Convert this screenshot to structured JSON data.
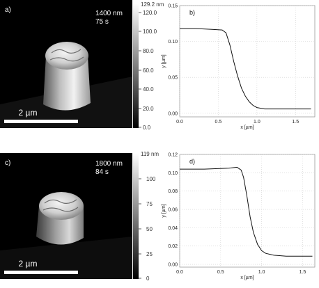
{
  "panels": {
    "a": {
      "label": "a)",
      "info_line1": "1400 nm",
      "info_line2": "75 s",
      "scalebar_label": "2 µm",
      "colorbar_max_label": "129.2 nm",
      "colorbar_ticks": [
        "120.0",
        "100.0",
        "80.0",
        "60.0",
        "40.0",
        "20.0",
        "0.0"
      ]
    },
    "c": {
      "label": "c)",
      "info_line1": "1800 nm",
      "info_line2": "84 s",
      "scalebar_label": "2 µm",
      "colorbar_max_label": "119 nm",
      "colorbar_ticks": [
        "100",
        "75",
        "50",
        "25",
        "0"
      ]
    }
  },
  "chart_data": [
    {
      "panel": "b)",
      "type": "line",
      "xlabel": "x [µm]",
      "ylabel": "y [µm]",
      "xlim": [
        0,
        1.75
      ],
      "ylim": [
        -0.005,
        0.15
      ],
      "xticks": [
        "0.0",
        "0.5",
        "1.0",
        "1.5"
      ],
      "xtick_values": [
        0,
        0.5,
        1.0,
        1.5
      ],
      "yticks": [
        "0.00",
        "0.05",
        "0.10",
        "0.15"
      ],
      "ytick_values": [
        0,
        0.05,
        0.1,
        0.15
      ],
      "grid": true,
      "x": [
        0.0,
        0.2,
        0.4,
        0.55,
        0.6,
        0.65,
        0.7,
        0.75,
        0.8,
        0.85,
        0.9,
        0.95,
        1.0,
        1.1,
        1.3,
        1.5,
        1.7
      ],
      "y": [
        0.118,
        0.118,
        0.117,
        0.116,
        0.112,
        0.095,
        0.072,
        0.052,
        0.035,
        0.024,
        0.016,
        0.011,
        0.008,
        0.006,
        0.006,
        0.006,
        0.006
      ]
    },
    {
      "panel": "d)",
      "type": "line",
      "xlabel": "x [µm]",
      "ylabel": "y [µm]",
      "xlim": [
        0,
        1.65
      ],
      "ylim": [
        -0.003,
        0.12
      ],
      "xticks": [
        "0.0",
        "0.5",
        "1.0",
        "1.5"
      ],
      "xtick_values": [
        0,
        0.5,
        1.0,
        1.5
      ],
      "yticks": [
        "0.00",
        "0.02",
        "0.04",
        "0.06",
        "0.08",
        "0.10",
        "0.12"
      ],
      "ytick_values": [
        0,
        0.02,
        0.04,
        0.06,
        0.08,
        0.1,
        0.12
      ],
      "grid": true,
      "x": [
        0.0,
        0.3,
        0.6,
        0.7,
        0.75,
        0.78,
        0.82,
        0.86,
        0.9,
        0.95,
        1.0,
        1.05,
        1.15,
        1.3,
        1.5,
        1.62
      ],
      "y": [
        0.104,
        0.104,
        0.105,
        0.106,
        0.103,
        0.095,
        0.075,
        0.052,
        0.035,
        0.022,
        0.015,
        0.012,
        0.01,
        0.009,
        0.009,
        0.009
      ]
    }
  ]
}
